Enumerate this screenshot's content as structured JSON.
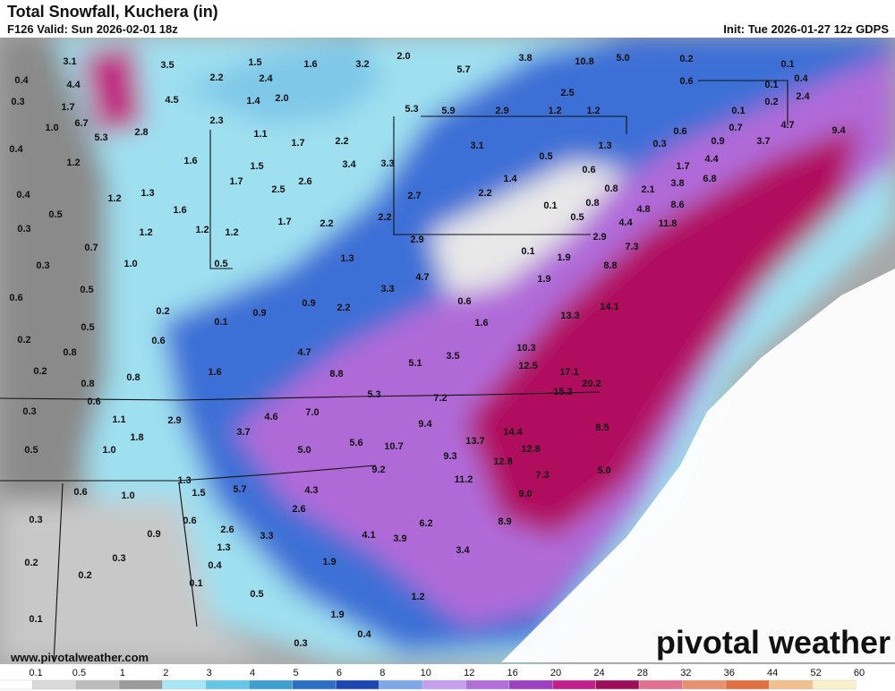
{
  "header": {
    "title": "Total Snowfall, Kuchera (in)",
    "valid": "F126 Valid: Sun 2026-02-01 18z",
    "init": "Init: Tue 2026-01-27 12z GDPS"
  },
  "footer": {
    "url": "www.pivotalweather.com",
    "brand": "pivotal weather"
  },
  "legend": {
    "ticks": [
      "0.1",
      "0.5",
      "1",
      "2",
      "3",
      "4",
      "5",
      "6",
      "8",
      "10",
      "12",
      "16",
      "20",
      "24",
      "28",
      "32",
      "36",
      "44",
      "52",
      "60"
    ],
    "colors": [
      "#ffffff",
      "#d9d9d9",
      "#bdbdbd",
      "#9a9a9a",
      "#a6e6f5",
      "#66c6e6",
      "#3fa0d0",
      "#2b6fc2",
      "#1f45b3",
      "#7ea7e8",
      "#c4a0ec",
      "#b070d8",
      "#9a40c0",
      "#c0208a",
      "#9c0e5a",
      "#e07090",
      "#e89070",
      "#e07040",
      "#f0c090",
      "#f8f0c8"
    ]
  },
  "map": {
    "labels": [
      "3.1",
      "3.5",
      "1.5",
      "1.6",
      "3.2",
      "2.0",
      "5.7",
      "3.8",
      "10.8",
      "5.0",
      "0.2",
      "0.1",
      "0.4",
      "4.4",
      "2.2",
      "2.4",
      "0.6",
      "0.1",
      "0.4",
      "0.3",
      "1.7",
      "4.5",
      "1.4",
      "2.0",
      "2.5",
      "0.2",
      "2.4",
      "5.3",
      "5.9",
      "2.9",
      "1.2",
      "1.2",
      "0.1",
      "1.0",
      "6.7",
      "5.3",
      "2.8",
      "2.3",
      "1.1",
      "1.7",
      "2.2",
      "3.1",
      "1.3",
      "0.3",
      "0.6",
      "0.9",
      "0.7",
      "3.7",
      "4.7",
      "9.4",
      "0.4",
      "1.2",
      "1.6",
      "1.5",
      "3.4",
      "3.3",
      "0.5",
      "0.6",
      "1.7",
      "4.4",
      "0.4",
      "1.7",
      "2.5",
      "2.6",
      "2.2",
      "1.4",
      "0.8",
      "2.1",
      "3.8",
      "6.8",
      "1.2",
      "1.3",
      "0.5",
      "1.6",
      "2.7",
      "0.1",
      "0.8",
      "0.5",
      "4.8",
      "8.6",
      "0.3",
      "1.2",
      "1.2",
      "1.2",
      "1.7",
      "2.2",
      "2.2",
      "4.4",
      "11.8",
      "0.7",
      "2.9",
      "2.9",
      "7.3",
      "1.0",
      "0.5",
      "0.3",
      "1.3",
      "0.1",
      "1.9",
      "8.8",
      "0.5",
      "4.7",
      "3.3",
      "1.9",
      "0.6",
      "0.2",
      "0.9",
      "0.9",
      "2.2",
      "0.6",
      "13.3",
      "14.1",
      "0.1",
      "0.5",
      "1.6",
      "0.2",
      "0.6",
      "10.3",
      "4.7",
      "0.8",
      "5.1",
      "3.5",
      "12.5",
      "0.2",
      "0.8",
      "1.6",
      "8.8",
      "17.1",
      "20.2",
      "0.8",
      "15.2",
      "5.3",
      "7.2",
      "0.6",
      "0.3",
      "4.6",
      "7.0",
      "9.4",
      "1.1",
      "2.9",
      "8.5",
      "14.4",
      "3.7",
      "13.7",
      "0.5",
      "1.0",
      "1.8",
      "5.0",
      "5.6",
      "10.7",
      "12.8",
      "9.3",
      "12.8",
      "5.0",
      "7.3",
      "9.2",
      "11.2",
      "1.3",
      "0.6",
      "1.5",
      "5.7",
      "4.3",
      "9.0",
      "1.0",
      "2.6",
      "0.3",
      "0.6",
      "8.9",
      "6.2",
      "0.9",
      "2.6",
      "3.3",
      "4.1",
      "3.9",
      "1.3",
      "3.4",
      "0.2",
      "0.3",
      "0.4",
      "1.9",
      "0.2",
      "0.1",
      "1.2",
      "0.5",
      "0.1",
      "1.9",
      "0.3",
      "0.4"
    ]
  }
}
